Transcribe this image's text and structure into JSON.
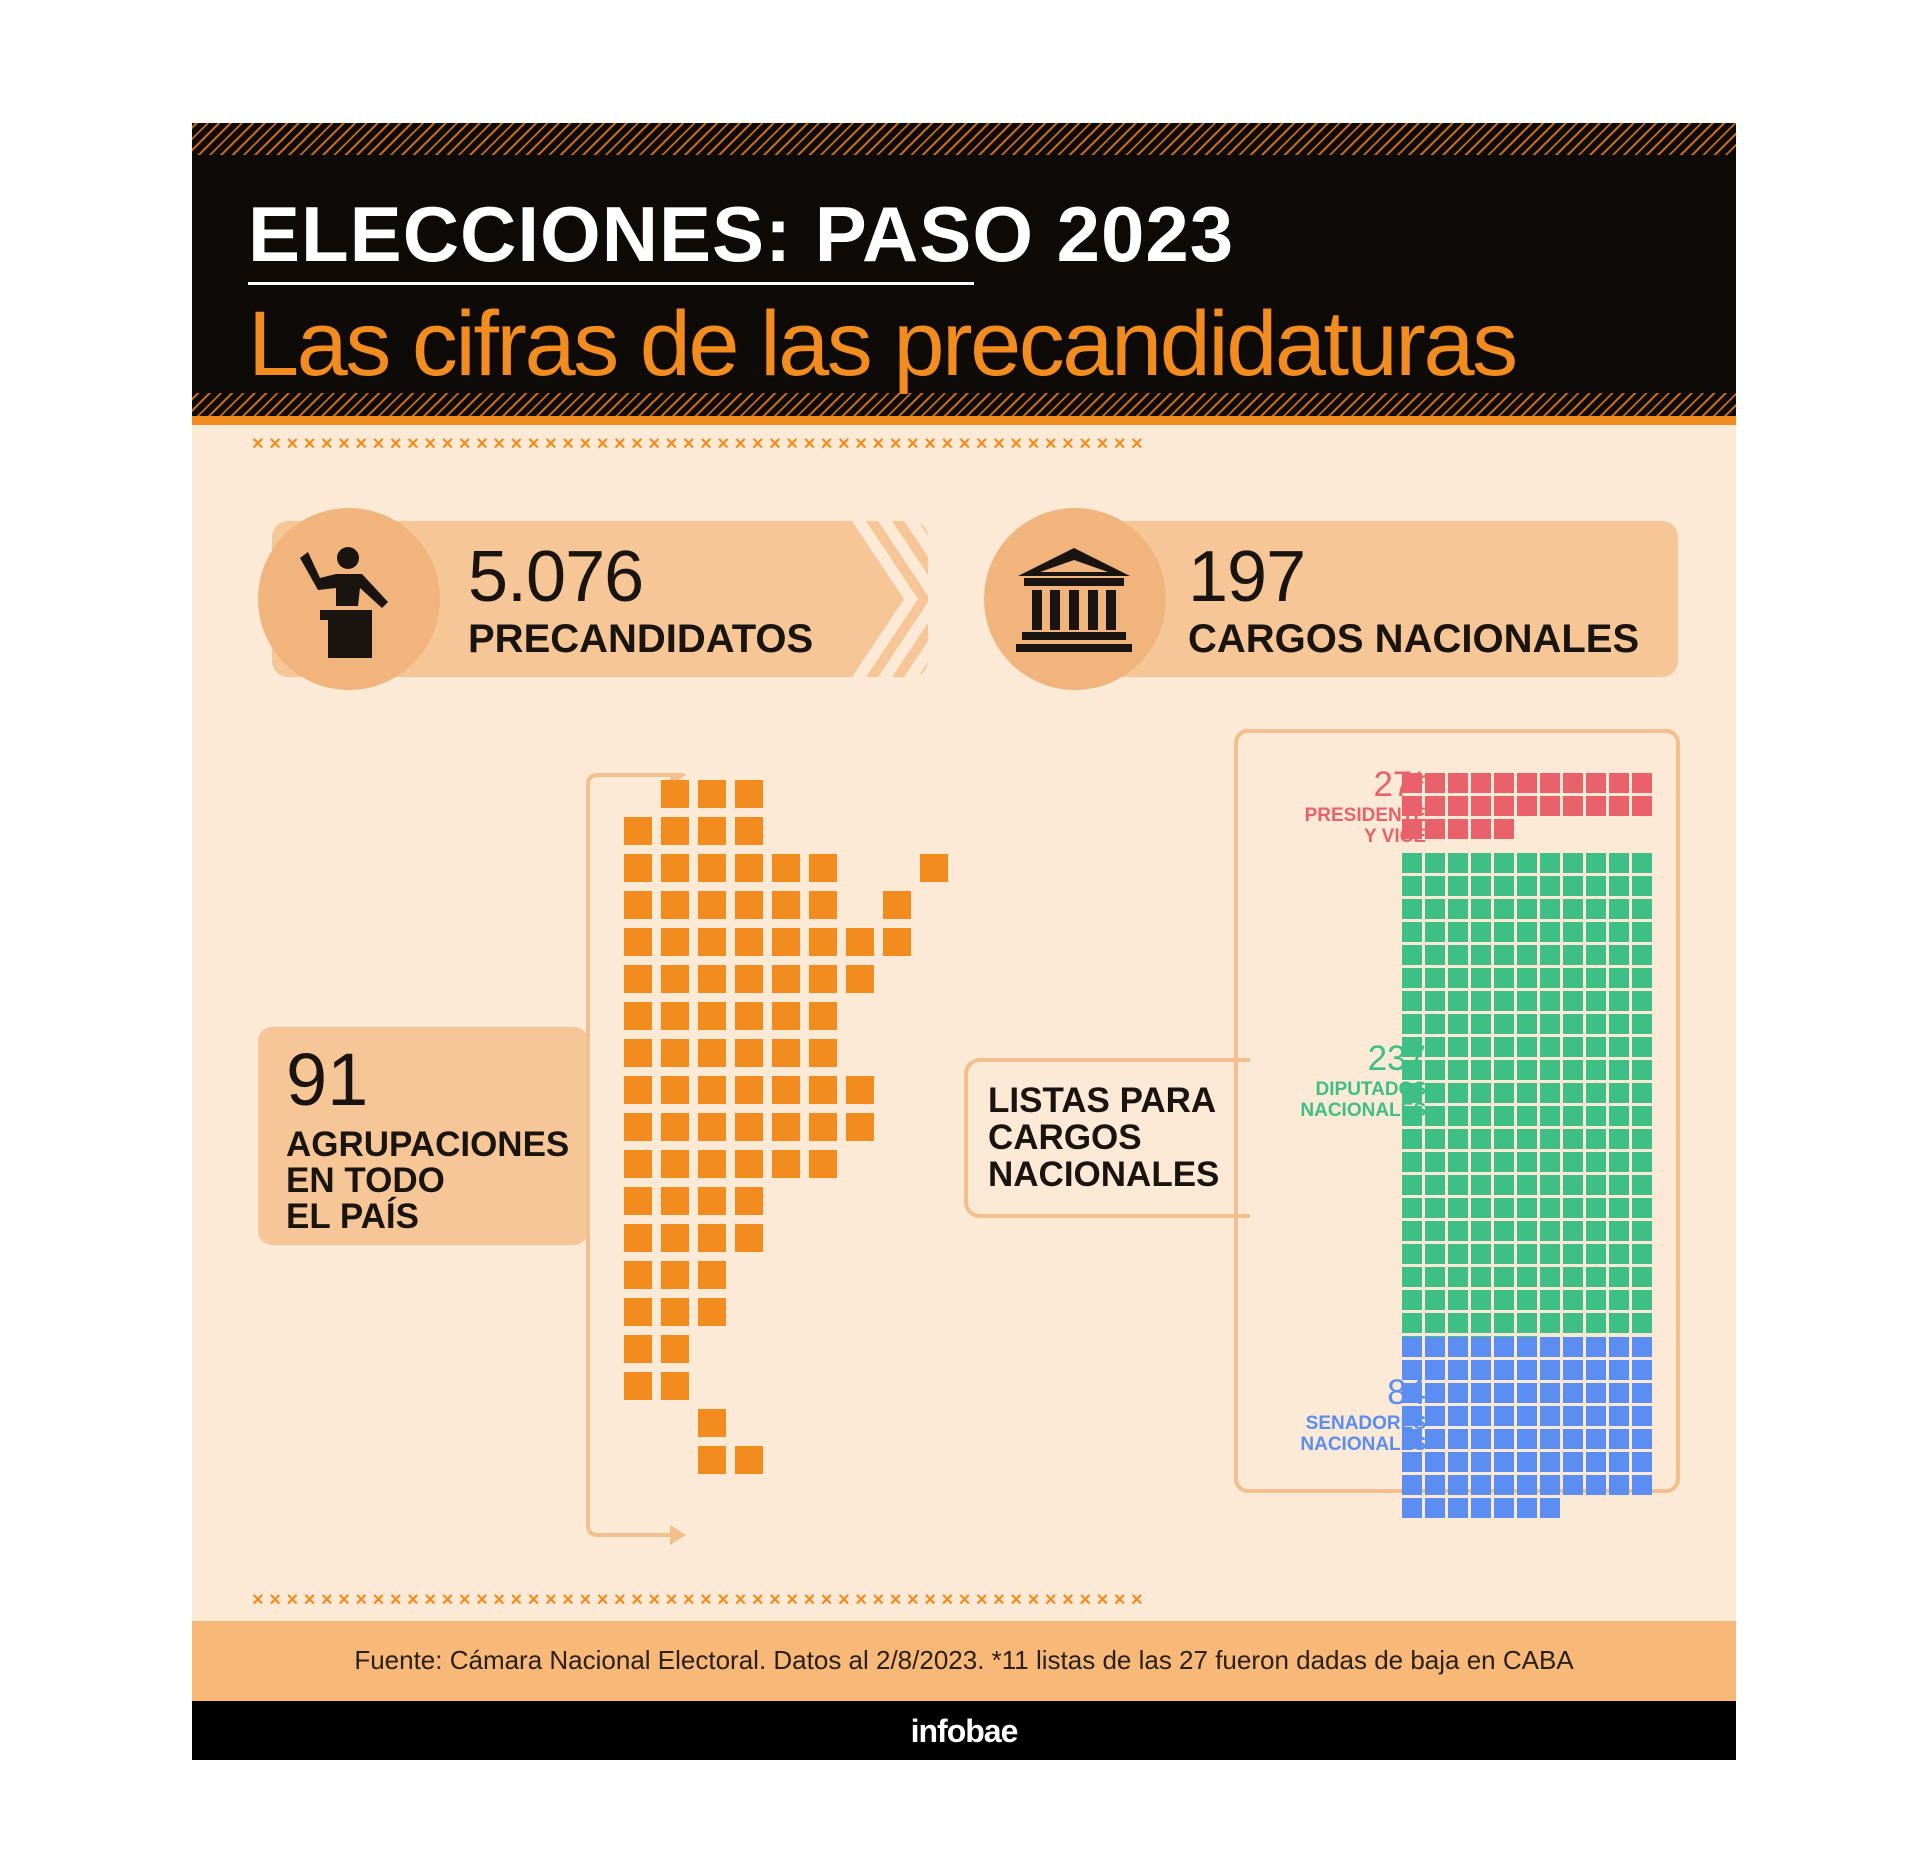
{
  "header": {
    "kicker": "ELECCIONES: PASO 2023",
    "title": "Las cifras de las precandidaturas"
  },
  "stats": {
    "precandidatos": {
      "value": "5.076",
      "label": "PRECANDIDATOS",
      "icon": "speaker-podium-icon"
    },
    "cargos": {
      "value": "197",
      "label": "CARGOS NACIONALES",
      "icon": "government-building-icon"
    }
  },
  "agrupaciones": {
    "value": "91",
    "label_lines": [
      "AGRUPACIONES",
      "EN TODO",
      "EL PAÍS"
    ],
    "count": 91
  },
  "listas": {
    "label_lines": [
      "LISTAS PARA",
      "CARGOS",
      "NACIONALES"
    ],
    "categories": [
      {
        "value": "27*",
        "label_lines": [
          "PRESIDENTE",
          "Y VICE"
        ],
        "count": 27,
        "color": "#e8616b"
      },
      {
        "value": "237",
        "label_lines": [
          "DIPUTADOS",
          "NACIONALES"
        ],
        "count": 237,
        "color": "#3dbf86"
      },
      {
        "value": "84",
        "label_lines": [
          "SENADORES",
          "NACIONALES"
        ],
        "count": 84,
        "color": "#5b8ef0"
      }
    ]
  },
  "separator": "× × × × × × × × × × × × × × × × × × × × × × × × × × × × × × × × × × × × × × × × × × × × × × × × × × × ×",
  "source": "Fuente: Cámara Nacional Electoral. Datos al 2/8/2023. *11 listas de las 27 fueron dadas de baja en CABA",
  "brand": "infobae",
  "colors": {
    "accent": "#f28c1e",
    "band": "#f6c697",
    "background": "#fce9d6",
    "header": "#0d0a08"
  }
}
